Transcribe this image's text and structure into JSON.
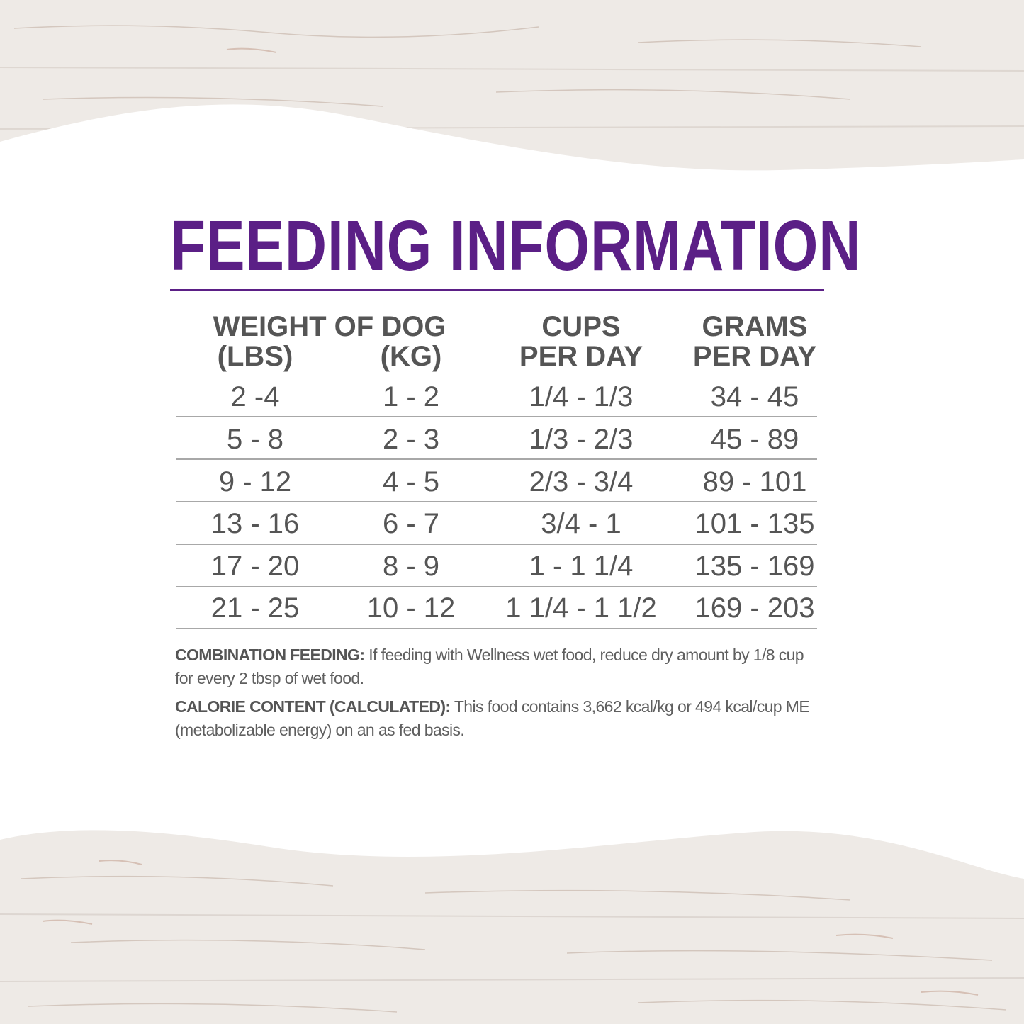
{
  "title": "FEEDING INFORMATION",
  "colors": {
    "accent": "#5b1f86",
    "text": "#555555",
    "panel": "#ffffff",
    "wood": "#eeeae6"
  },
  "table": {
    "headers": {
      "weight_group": "WEIGHT OF DOG",
      "lbs": "(LBS)",
      "kg": "(KG)",
      "cups_line1": "CUPS",
      "cups_line2": "PER DAY",
      "grams_line1": "GRAMS",
      "grams_line2": "PER DAY"
    },
    "rows": [
      {
        "lbs": "2 -4",
        "kg": "1 - 2",
        "cups": "1/4 - 1/3",
        "grams": "34 - 45"
      },
      {
        "lbs": "5 - 8",
        "kg": "2 - 3",
        "cups": "1/3 - 2/3",
        "grams": "45 - 89"
      },
      {
        "lbs": "9 - 12",
        "kg": "4 - 5",
        "cups": "2/3 - 3/4",
        "grams": "89 - 101"
      },
      {
        "lbs": "13 - 16",
        "kg": "6 - 7",
        "cups": "3/4 - 1",
        "grams": "101 - 135"
      },
      {
        "lbs": "17 - 20",
        "kg": "8 - 9",
        "cups": "1 - 1 1/4",
        "grams": "135 - 169"
      },
      {
        "lbs": "21 - 25",
        "kg": "10 - 12",
        "cups": "1 1/4 - 1 1/2",
        "grams": "169 - 203"
      }
    ]
  },
  "notes": {
    "combination_label": "COMBINATION FEEDING:",
    "combination_text": " If feeding with Wellness wet food, reduce dry amount by 1/8 cup for every 2 tbsp of wet food.",
    "calorie_label": "CALORIE CONTENT (CALCULATED):",
    "calorie_text": " This food contains 3,662 kcal/kg or 494 kcal/cup ME (metabolizable energy) on an as fed basis."
  }
}
